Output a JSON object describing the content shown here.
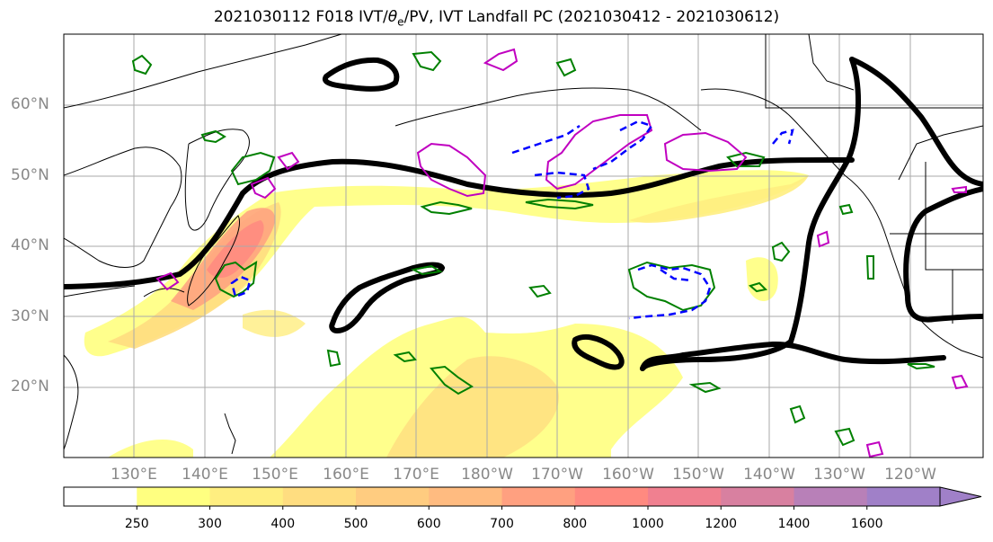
{
  "title": {
    "prefix": "2021030112 F018 IVT/",
    "theta_symbol": "θ",
    "theta_sub": "e",
    "suffix": "/PV, IVT Landfall PC (2021030412 - 2021030612)"
  },
  "map": {
    "lat_labels": [
      "60°N",
      "50°N",
      "40°N",
      "30°N",
      "20°N"
    ],
    "lon_labels": [
      "130°E",
      "140°E",
      "150°E",
      "160°E",
      "170°E",
      "180°W",
      "170°W",
      "160°W",
      "150°W",
      "140°W",
      "130°W",
      "120°W"
    ],
    "colors": {
      "coastline": "#000000",
      "grid": "#aaaaaa",
      "landfall_pc": "#000000",
      "theta_e": "#008000",
      "pv_positive": "#c000c0",
      "pv_negative": "#0000ff"
    }
  },
  "colorbar": {
    "tick_labels": [
      "250",
      "300",
      "400",
      "500",
      "600",
      "700",
      "800",
      "1000",
      "1200",
      "1400",
      "1600"
    ],
    "segments": [
      {
        "from": "",
        "to": "250",
        "color": "#ffffff"
      },
      {
        "from": "250",
        "to": "300",
        "color": "#ffff80"
      },
      {
        "from": "300",
        "to": "400",
        "color": "#ffee80"
      },
      {
        "from": "400",
        "to": "500",
        "color": "#ffdd80"
      },
      {
        "from": "500",
        "to": "600",
        "color": "#ffcc80"
      },
      {
        "from": "600",
        "to": "700",
        "color": "#ffbb80"
      },
      {
        "from": "700",
        "to": "800",
        "color": "#ffa080"
      },
      {
        "from": "800",
        "to": "1000",
        "color": "#ff8a80"
      },
      {
        "from": "1000",
        "to": "1200",
        "color": "#f08090"
      },
      {
        "from": "1200",
        "to": "1400",
        "color": "#d880a0"
      },
      {
        "from": "1400",
        "to": "1600",
        "color": "#b880b8"
      },
      {
        "from": "1600",
        "to": "",
        "color": "#a080c8"
      }
    ]
  }
}
